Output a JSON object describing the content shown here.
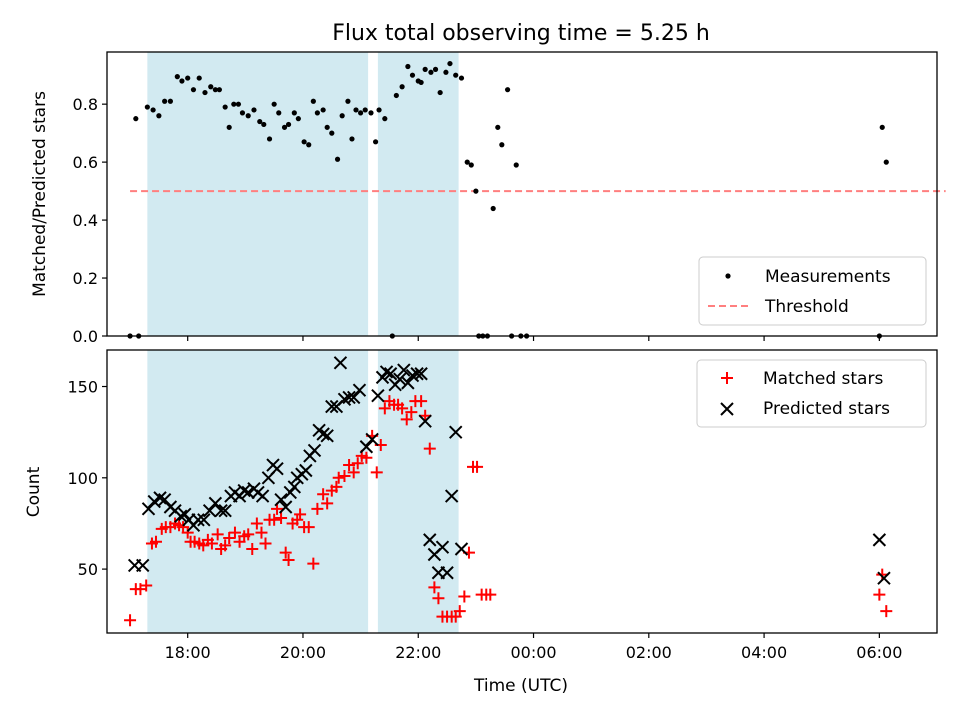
{
  "chart_data": [
    {
      "type": "scatter",
      "title": "Flux total observing time = 5.25 h",
      "ylabel": "Matched/Predicted stars",
      "ylim": [
        0,
        0.98
      ],
      "yticks": [
        0.0,
        0.2,
        0.4,
        0.6,
        0.8
      ],
      "ytick_labels": [
        "0.0",
        "0.2",
        "0.4",
        "0.6",
        "0.8"
      ],
      "xlim_hours": [
        16.6,
        31.0
      ],
      "shaded_intervals_hours": [
        [
          17.3,
          21.13
        ],
        [
          21.3,
          22.7
        ]
      ],
      "shade_color": "#add8e6",
      "legend_position": "lower right",
      "legend": [
        "Measurements",
        "Threshold"
      ],
      "threshold": {
        "name": "Threshold",
        "value": 0.5,
        "x_range_hours": [
          17.0,
          31.15
        ],
        "color": "#ff7f7f"
      },
      "series": [
        {
          "name": "Measurements",
          "color": "#000000",
          "points": [
            [
              17.0,
              0.0
            ],
            [
              17.1,
              0.75
            ],
            [
              17.15,
              0.0
            ],
            [
              17.3,
              0.79
            ],
            [
              17.4,
              0.78
            ],
            [
              17.5,
              0.76
            ],
            [
              17.6,
              0.81
            ],
            [
              17.7,
              0.81
            ],
            [
              17.82,
              0.895
            ],
            [
              17.9,
              0.88
            ],
            [
              18.0,
              0.89
            ],
            [
              18.1,
              0.85
            ],
            [
              18.2,
              0.89
            ],
            [
              18.3,
              0.84
            ],
            [
              18.4,
              0.86
            ],
            [
              18.48,
              0.85
            ],
            [
              18.55,
              0.85
            ],
            [
              18.65,
              0.79
            ],
            [
              18.72,
              0.72
            ],
            [
              18.8,
              0.8
            ],
            [
              18.88,
              0.8
            ],
            [
              18.95,
              0.77
            ],
            [
              19.05,
              0.76
            ],
            [
              19.15,
              0.78
            ],
            [
              19.25,
              0.74
            ],
            [
              19.32,
              0.73
            ],
            [
              19.42,
              0.68
            ],
            [
              19.5,
              0.8
            ],
            [
              19.58,
              0.77
            ],
            [
              19.68,
              0.72
            ],
            [
              19.75,
              0.73
            ],
            [
              19.85,
              0.77
            ],
            [
              19.92,
              0.75
            ],
            [
              20.02,
              0.67
            ],
            [
              20.1,
              0.66
            ],
            [
              20.18,
              0.81
            ],
            [
              20.25,
              0.77
            ],
            [
              20.35,
              0.78
            ],
            [
              20.42,
              0.72
            ],
            [
              20.5,
              0.7
            ],
            [
              20.6,
              0.61
            ],
            [
              20.68,
              0.76
            ],
            [
              20.78,
              0.81
            ],
            [
              20.85,
              0.68
            ],
            [
              20.92,
              0.78
            ],
            [
              21.0,
              0.77
            ],
            [
              21.08,
              0.78
            ],
            [
              21.18,
              0.77
            ],
            [
              21.26,
              0.67
            ],
            [
              21.32,
              0.78
            ],
            [
              21.42,
              0.75
            ],
            [
              21.55,
              0.0
            ],
            [
              21.62,
              0.83
            ],
            [
              21.72,
              0.86
            ],
            [
              21.82,
              0.93
            ],
            [
              21.9,
              0.9
            ],
            [
              22.0,
              0.88
            ],
            [
              22.05,
              0.875
            ],
            [
              22.12,
              0.92
            ],
            [
              22.22,
              0.91
            ],
            [
              22.3,
              0.92
            ],
            [
              22.38,
              0.84
            ],
            [
              22.48,
              0.91
            ],
            [
              22.55,
              0.94
            ],
            [
              22.65,
              0.9
            ],
            [
              22.75,
              0.89
            ],
            [
              22.85,
              0.6
            ],
            [
              22.92,
              0.59
            ],
            [
              23.0,
              0.5
            ],
            [
              23.05,
              0.0
            ],
            [
              23.12,
              0.0
            ],
            [
              23.2,
              0.0
            ],
            [
              23.3,
              0.44
            ],
            [
              23.38,
              0.72
            ],
            [
              23.45,
              0.66
            ],
            [
              23.55,
              0.85
            ],
            [
              23.62,
              0.0
            ],
            [
              23.7,
              0.59
            ],
            [
              23.78,
              0.0
            ],
            [
              23.88,
              0.0
            ],
            [
              30.0,
              0.0
            ],
            [
              30.05,
              0.72
            ],
            [
              30.12,
              0.6
            ]
          ]
        }
      ]
    },
    {
      "type": "scatter",
      "ylabel": "Count",
      "xlabel": "Time (UTC)",
      "ylim": [
        15,
        170
      ],
      "yticks": [
        50,
        100,
        150
      ],
      "ytick_labels": [
        "50",
        "100",
        "150"
      ],
      "xlim_hours": [
        16.6,
        31.0
      ],
      "xticks_hours": [
        18,
        20,
        22,
        24,
        26,
        28,
        30
      ],
      "xtick_labels": [
        "18:00",
        "20:00",
        "22:00",
        "00:00",
        "02:00",
        "04:00",
        "06:00"
      ],
      "shaded_intervals_hours": [
        [
          17.3,
          21.13
        ],
        [
          21.3,
          22.7
        ]
      ],
      "shade_color": "#add8e6",
      "legend_position": "upper right",
      "legend": [
        "Matched stars",
        "Predicted stars"
      ],
      "series": [
        {
          "name": "Matched stars",
          "marker": "plus",
          "color": "#ff0000",
          "points": [
            [
              17.0,
              22
            ],
            [
              17.1,
              39
            ],
            [
              17.18,
              39
            ],
            [
              17.28,
              41
            ],
            [
              17.38,
              64
            ],
            [
              17.45,
              65
            ],
            [
              17.55,
              72
            ],
            [
              17.62,
              73
            ],
            [
              17.7,
              73
            ],
            [
              17.78,
              75
            ],
            [
              17.85,
              74
            ],
            [
              17.92,
              73
            ],
            [
              18.0,
              70
            ],
            [
              18.05,
              65
            ],
            [
              18.12,
              65
            ],
            [
              18.2,
              64
            ],
            [
              18.27,
              63
            ],
            [
              18.35,
              66
            ],
            [
              18.42,
              64
            ],
            [
              18.52,
              69
            ],
            [
              18.58,
              61
            ],
            [
              18.65,
              63
            ],
            [
              18.72,
              67
            ],
            [
              18.82,
              70
            ],
            [
              18.9,
              65
            ],
            [
              18.98,
              68
            ],
            [
              19.05,
              69
            ],
            [
              19.12,
              61
            ],
            [
              19.2,
              75
            ],
            [
              19.28,
              70
            ],
            [
              19.35,
              64
            ],
            [
              19.42,
              77
            ],
            [
              19.5,
              77
            ],
            [
              19.55,
              83
            ],
            [
              19.62,
              78
            ],
            [
              19.7,
              59
            ],
            [
              19.75,
              55
            ],
            [
              19.82,
              75
            ],
            [
              19.9,
              77
            ],
            [
              19.95,
              80
            ],
            [
              20.02,
              73
            ],
            [
              20.1,
              73
            ],
            [
              20.18,
              53
            ],
            [
              20.25,
              83
            ],
            [
              20.35,
              91
            ],
            [
              20.42,
              86
            ],
            [
              20.5,
              93
            ],
            [
              20.58,
              95
            ],
            [
              20.62,
              100
            ],
            [
              20.72,
              101
            ],
            [
              20.8,
              107
            ],
            [
              20.88,
              103
            ],
            [
              20.95,
              108
            ],
            [
              21.02,
              112
            ],
            [
              21.1,
              111
            ],
            [
              21.2,
              123
            ],
            [
              21.28,
              103
            ],
            [
              21.35,
              118
            ],
            [
              21.42,
              138
            ],
            [
              21.5,
              142
            ],
            [
              21.58,
              140
            ],
            [
              21.65,
              140
            ],
            [
              21.72,
              138
            ],
            [
              21.8,
              132
            ],
            [
              21.88,
              136
            ],
            [
              21.95,
              142
            ],
            [
              22.05,
              142
            ],
            [
              22.12,
              134
            ],
            [
              22.2,
              116
            ],
            [
              22.28,
              40
            ],
            [
              22.35,
              34
            ],
            [
              22.42,
              24
            ],
            [
              22.5,
              24
            ],
            [
              22.58,
              24
            ],
            [
              22.65,
              24
            ],
            [
              22.72,
              27
            ],
            [
              22.8,
              35
            ],
            [
              22.88,
              59
            ],
            [
              22.95,
              106
            ],
            [
              23.02,
              106
            ],
            [
              23.1,
              36
            ],
            [
              23.18,
              36
            ],
            [
              23.25,
              36
            ],
            [
              30.0,
              36
            ],
            [
              30.05,
              47
            ],
            [
              30.12,
              27
            ]
          ]
        },
        {
          "name": "Predicted stars",
          "marker": "x",
          "color": "#000000",
          "points": [
            [
              17.08,
              52
            ],
            [
              17.22,
              52
            ],
            [
              17.32,
              83
            ],
            [
              17.42,
              87
            ],
            [
              17.52,
              89
            ],
            [
              17.6,
              88
            ],
            [
              17.7,
              84
            ],
            [
              17.78,
              82
            ],
            [
              17.88,
              79
            ],
            [
              17.95,
              80
            ],
            [
              18.02,
              77
            ],
            [
              18.1,
              74
            ],
            [
              18.18,
              77
            ],
            [
              18.28,
              77
            ],
            [
              18.38,
              82
            ],
            [
              18.48,
              86
            ],
            [
              18.58,
              82
            ],
            [
              18.65,
              82
            ],
            [
              18.75,
              90
            ],
            [
              18.82,
              92
            ],
            [
              18.9,
              90
            ],
            [
              18.98,
              93
            ],
            [
              19.05,
              92
            ],
            [
              19.15,
              94
            ],
            [
              19.22,
              92
            ],
            [
              19.3,
              90
            ],
            [
              19.4,
              100
            ],
            [
              19.48,
              107
            ],
            [
              19.55,
              105
            ],
            [
              19.62,
              88
            ],
            [
              19.7,
              84
            ],
            [
              19.78,
              92
            ],
            [
              19.85,
              95
            ],
            [
              19.9,
              100
            ],
            [
              19.98,
              102
            ],
            [
              20.05,
              104
            ],
            [
              20.12,
              112
            ],
            [
              20.2,
              115
            ],
            [
              20.28,
              126
            ],
            [
              20.35,
              124
            ],
            [
              20.42,
              123
            ],
            [
              20.5,
              139
            ],
            [
              20.58,
              139
            ],
            [
              20.65,
              163
            ],
            [
              20.72,
              143
            ],
            [
              20.8,
              144
            ],
            [
              20.88,
              144
            ],
            [
              20.98,
              148
            ],
            [
              21.1,
              117
            ],
            [
              21.2,
              121
            ],
            [
              21.3,
              145
            ],
            [
              21.38,
              155
            ],
            [
              21.45,
              158
            ],
            [
              21.52,
              157
            ],
            [
              21.6,
              151
            ],
            [
              21.68,
              154
            ],
            [
              21.75,
              159
            ],
            [
              21.82,
              152
            ],
            [
              21.9,
              156
            ],
            [
              21.98,
              157
            ],
            [
              22.05,
              157
            ],
            [
              22.12,
              131
            ],
            [
              22.2,
              66
            ],
            [
              22.28,
              58
            ],
            [
              22.35,
              48
            ],
            [
              22.42,
              62
            ],
            [
              22.5,
              48
            ],
            [
              22.58,
              90
            ],
            [
              22.65,
              125
            ],
            [
              22.75,
              61
            ],
            [
              30.0,
              66
            ],
            [
              30.08,
              45
            ]
          ]
        }
      ]
    }
  ]
}
